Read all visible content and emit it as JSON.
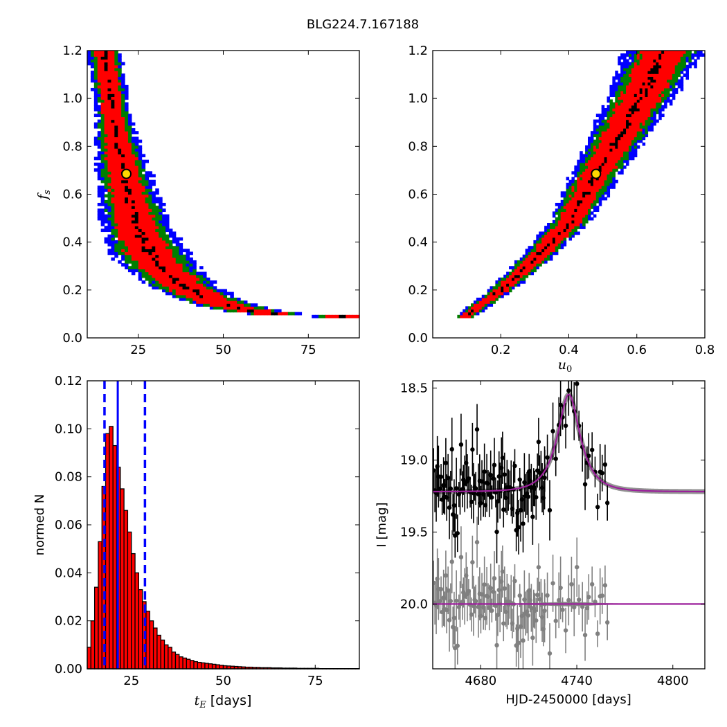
{
  "title": "BLG224.7.167188",
  "colors": {
    "blue": "#0000ff",
    "green": "#007f00",
    "red": "#ff0000",
    "black": "#000000",
    "bestfit": "#ffd700",
    "model": "#9b1f9b",
    "resid": "#808080"
  },
  "chart_data": [
    {
      "type": "heatmap",
      "name": "tE-fs",
      "xlabel": "",
      "ylabel": "f",
      "ylabel_sub": "s",
      "xlim": [
        10,
        90
      ],
      "ylim": [
        0,
        1.2
      ],
      "xticks": [
        25,
        50,
        75
      ],
      "yticks": [
        0.0,
        0.2,
        0.4,
        0.6,
        0.8,
        1.0,
        1.2
      ],
      "best_fit": {
        "x": 21.5,
        "y": 0.685
      },
      "centerline": [
        [
          15,
          1.2
        ],
        [
          17,
          1.0
        ],
        [
          18.5,
          0.85
        ],
        [
          20.5,
          0.7
        ],
        [
          23,
          0.55
        ],
        [
          25,
          0.45
        ],
        [
          28,
          0.36
        ],
        [
          32,
          0.29
        ],
        [
          37,
          0.23
        ],
        [
          43,
          0.18
        ],
        [
          50,
          0.14
        ],
        [
          58,
          0.115
        ],
        [
          68,
          0.095
        ],
        [
          85,
          0.09
        ]
      ]
    },
    {
      "type": "heatmap",
      "name": "u0-fs",
      "xlabel": "u",
      "xlabel_sub": "0",
      "ylabel": "",
      "xlim": [
        0,
        0.8
      ],
      "ylim": [
        0,
        1.2
      ],
      "xticks": [
        0.2,
        0.4,
        0.6,
        0.8
      ],
      "yticks": [
        0.0,
        0.2,
        0.4,
        0.6,
        0.8,
        1.0,
        1.2
      ],
      "best_fit": {
        "x": 0.48,
        "y": 0.685
      },
      "centerline": [
        [
          0.095,
          0.09
        ],
        [
          0.2,
          0.2
        ],
        [
          0.3,
          0.33
        ],
        [
          0.4,
          0.48
        ],
        [
          0.48,
          0.685
        ],
        [
          0.55,
          0.85
        ],
        [
          0.62,
          1.03
        ],
        [
          0.68,
          1.2
        ]
      ]
    },
    {
      "type": "bar",
      "name": "tE-histogram",
      "xlabel": "t",
      "xlabel_sub": "E",
      "xlabel_unit": "[days]",
      "ylabel": "normed N",
      "xlim": [
        13,
        87
      ],
      "ylim": [
        0,
        0.12
      ],
      "xticks": [
        25,
        50,
        75
      ],
      "yticks": [
        0.0,
        0.02,
        0.04,
        0.06,
        0.08,
        0.1,
        0.12
      ],
      "ytick_labels": [
        "0.00",
        "0.02",
        "0.04",
        "0.06",
        "0.08",
        "0.10",
        "0.12"
      ],
      "bin_start": 13,
      "bin_width": 1,
      "values": [
        0.009,
        0.02,
        0.034,
        0.053,
        0.076,
        0.098,
        0.101,
        0.093,
        0.084,
        0.075,
        0.066,
        0.057,
        0.048,
        0.04,
        0.033,
        0.028,
        0.024,
        0.02,
        0.017,
        0.014,
        0.012,
        0.01,
        0.009,
        0.007,
        0.006,
        0.005,
        0.0045,
        0.004,
        0.0035,
        0.003,
        0.0027,
        0.0025,
        0.0023,
        0.0021,
        0.0019,
        0.0017,
        0.0015,
        0.0013,
        0.0012,
        0.0011,
        0.001,
        0.0009,
        0.0008,
        0.0007,
        0.0007,
        0.0006,
        0.0006,
        0.0005,
        0.0005,
        0.0005,
        0.0004,
        0.0004,
        0.0004,
        0.0003,
        0.0003,
        0.0003,
        0.0003,
        0.0002,
        0.0002,
        0.0002,
        0.0002,
        0.0002,
        0.0002,
        0.0001,
        0.0001,
        0.0001,
        0.0001,
        0.0001,
        0.0001,
        0.0001,
        0.0001,
        0.0001,
        0.0001,
        0.0001
      ],
      "vlines": {
        "median": 21.3,
        "lower": 17.7,
        "upper": 28.7
      }
    },
    {
      "type": "scatter",
      "name": "light-curve",
      "xlabel": "HJD-2450000 [days]",
      "ylabel": "I [mag]",
      "xlim": [
        4650,
        4820
      ],
      "ylim": [
        20.45,
        18.45
      ],
      "xticks": [
        4680,
        4740,
        4800
      ],
      "yticks": [
        18.5,
        19.0,
        19.5,
        20.0
      ],
      "baseline_mag": 19.22,
      "peak_mag": 18.57,
      "t0": 4735,
      "resid_offset": 20.0
    }
  ]
}
